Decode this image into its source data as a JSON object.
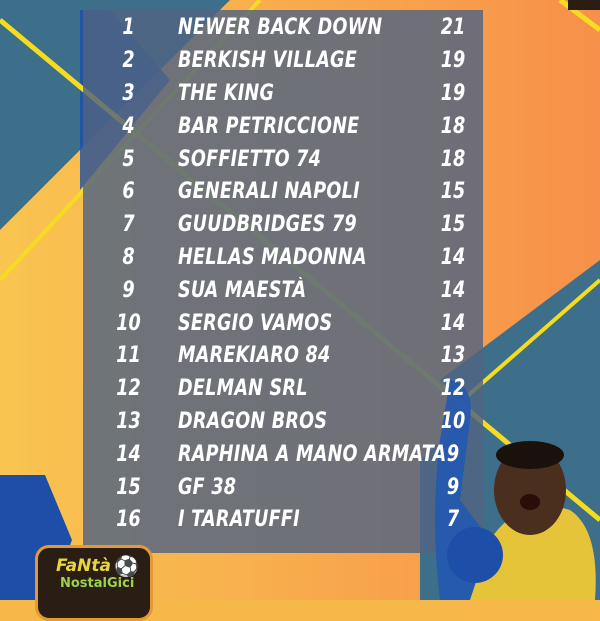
{
  "standings": [
    {
      "rank": "1",
      "team": "NEWER BACK DOWN",
      "points": "21"
    },
    {
      "rank": "2",
      "team": "BERKISH VILLAGE",
      "points": "19"
    },
    {
      "rank": "3",
      "team": "THE KING",
      "points": "19"
    },
    {
      "rank": "4",
      "team": "BAR PETRICCIONE",
      "points": "18"
    },
    {
      "rank": "5",
      "team": "SOFFIETTO 74",
      "points": "18"
    },
    {
      "rank": "6",
      "team": "GENERALI NAPOLI",
      "points": "15"
    },
    {
      "rank": "7",
      "team": "GUUDBRIDGES 79",
      "points": "15"
    },
    {
      "rank": "8",
      "team": "HELLAS MADONNA",
      "points": "14"
    },
    {
      "rank": "9",
      "team": "SUA MAESTÀ",
      "points": "14"
    },
    {
      "rank": "10",
      "team": "SERGIO VAMOS",
      "points": "14"
    },
    {
      "rank": "11",
      "team": "MAREKIARO 84",
      "points": "13"
    },
    {
      "rank": "12",
      "team": "DELMAN SRL",
      "points": "12"
    },
    {
      "rank": "13",
      "team": "DRAGON BROS",
      "points": "10"
    },
    {
      "rank": "14",
      "team": "RAPHINA A MANO ARMATA",
      "points": "9"
    },
    {
      "rank": "15",
      "team": "GF 38",
      "points": "9"
    },
    {
      "rank": "16",
      "team": "I TARATUFFI",
      "points": "7"
    }
  ],
  "logo": {
    "line1": "FaNtà",
    "line2": "NostalGici"
  },
  "colors": {
    "background": "#f7b84a",
    "teal": "#3d6f8a",
    "blue": "#1d4fa8",
    "accent_line": "#f5dc1e",
    "panel": "#50648299"
  }
}
